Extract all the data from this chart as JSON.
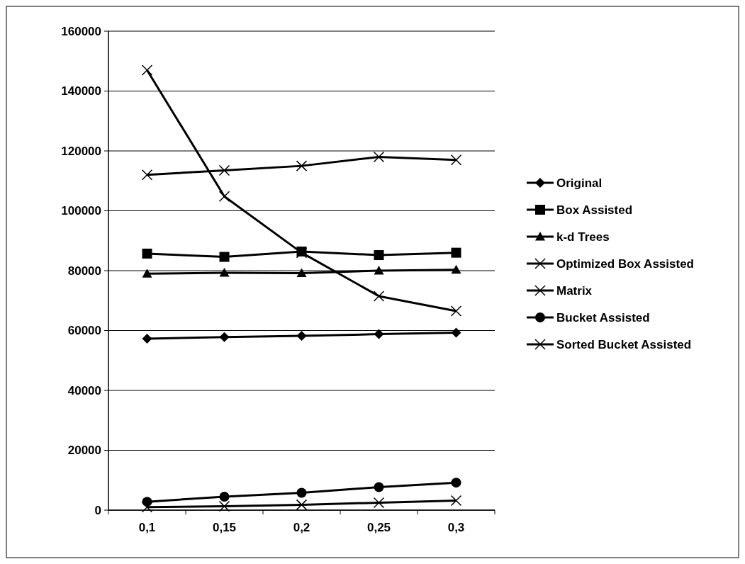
{
  "chart_data": {
    "type": "line",
    "categories": [
      "0,1",
      "0,15",
      "0,2",
      "0,25",
      "0,3"
    ],
    "ylim": [
      0,
      160000
    ],
    "yticks": [
      0,
      20000,
      40000,
      60000,
      80000,
      100000,
      120000,
      140000,
      160000
    ],
    "grid": "y",
    "legend": "right",
    "series": [
      {
        "name": "Original",
        "color": "#000000",
        "marker": "diamond",
        "values": [
          57300,
          57800,
          58200,
          58800,
          59300
        ]
      },
      {
        "name": "Box Assisted",
        "color": "#000000",
        "marker": "square",
        "values": [
          85700,
          84600,
          86400,
          85200,
          86000
        ]
      },
      {
        "name": "k-d Trees",
        "color": "#000000",
        "marker": "triangle",
        "values": [
          79000,
          79300,
          79200,
          80000,
          80300
        ]
      },
      {
        "name": "Optimized Box Assisted",
        "color": "#000000",
        "marker": "cross",
        "values": [
          147000,
          104800,
          86000,
          71500,
          66500
        ]
      },
      {
        "name": "Matrix",
        "color": "#000000",
        "marker": "cross",
        "values": [
          112000,
          113500,
          115000,
          118000,
          117000
        ]
      },
      {
        "name": "Bucket Assisted",
        "color": "#000000",
        "marker": "circle",
        "values": [
          2800,
          4500,
          5800,
          7700,
          9200
        ]
      },
      {
        "name": "Sorted Bucket Assisted",
        "color": "#000000",
        "marker": "cross",
        "values": [
          1000,
          1300,
          1800,
          2500,
          3200
        ]
      }
    ]
  }
}
